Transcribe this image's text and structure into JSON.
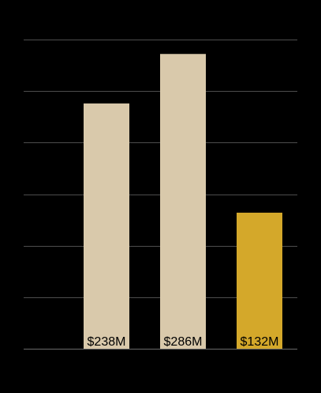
{
  "chart_data": {
    "type": "bar",
    "categories": [
      "",
      "",
      ""
    ],
    "values": [
      238,
      286,
      132
    ],
    "data_labels": [
      "$238M",
      "$286M",
      "$132M"
    ],
    "colors": [
      "#d9c9ab",
      "#d9c9ab",
      "#d4a82a"
    ],
    "title": "",
    "xlabel": "",
    "ylabel": "",
    "ylim": [
      0,
      300
    ],
    "grid": true,
    "legend": "none"
  }
}
